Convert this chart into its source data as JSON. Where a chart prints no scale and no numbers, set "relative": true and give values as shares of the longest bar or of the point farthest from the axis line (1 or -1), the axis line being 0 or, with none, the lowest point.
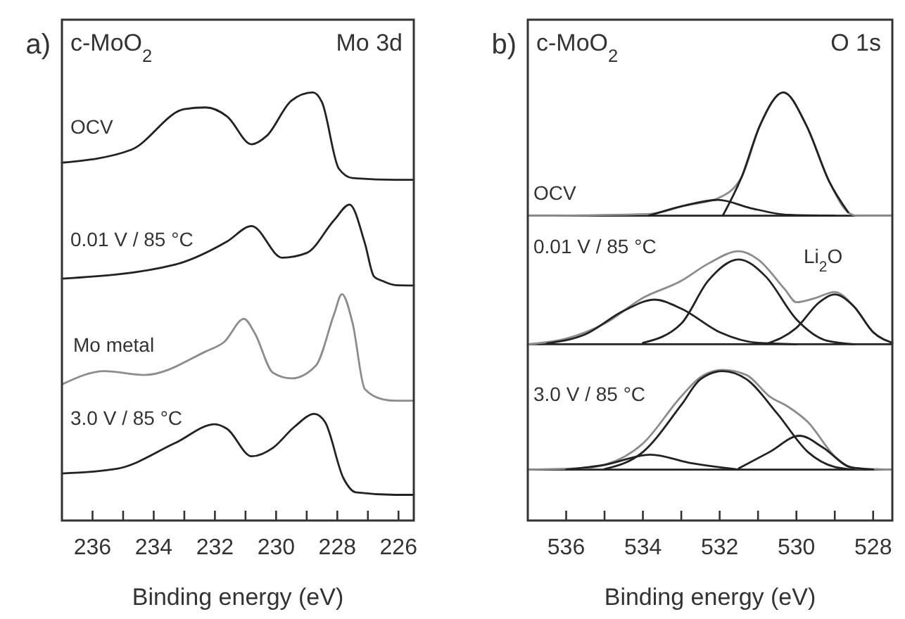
{
  "chart_data": [
    {
      "type": "line",
      "relative": true,
      "xlabel": "Binding energy (eV)",
      "xlim": [
        237,
        225.5
      ],
      "xticks": [
        236,
        {
          "value": 235,
          "label": null
        },
        234,
        {
          "value": 233,
          "label": null
        },
        232,
        {
          "value": 231,
          "label": null
        },
        230,
        {
          "value": 229,
          "label": null
        },
        228,
        {
          "value": 227,
          "label": null
        },
        226
      ],
      "grid": false,
      "marker": "none",
      "line_style": "solid",
      "annotations": [
        "a)",
        "c-MoO$_{2}$",
        "Mo 3d",
        "OCV",
        "0.01 V / 85 °C",
        "Mo metal",
        "3.0 V / 85 °C"
      ],
      "series": [
        {
          "color": "#222222",
          "x": [
            237,
            234.74,
            233.0,
            232.3,
            231.6,
            230.8,
            230.3,
            229.5,
            228.8,
            228.5,
            227.95,
            227.5,
            226.1,
            225.5
          ],
          "values": [
            0.836,
            0.866,
            0.961,
            0.965,
            0.944,
            0.879,
            0.899,
            0.981,
            1,
            0.977,
            0.822,
            0.8,
            0.796,
            0.796
          ]
        },
        {
          "color": "#222222",
          "x": [
            237,
            233.3,
            231.6,
            230.8,
            229.8,
            229.0,
            228.1,
            227.6,
            227.1,
            226.8,
            226.5,
            226.1,
            225.5
          ],
          "values": [
            0.565,
            0.598,
            0.652,
            0.688,
            0.614,
            0.625,
            0.702,
            0.738,
            0.648,
            0.57,
            0.559,
            0.55,
            0.549
          ]
        },
        {
          "color": "#8c8c8c",
          "x": [
            237,
            235.6,
            234.3,
            232.3,
            231.7,
            231.05,
            230.7,
            230.1,
            229.5,
            228.7,
            228.1,
            227.85,
            227.5,
            227.1,
            226.5,
            226.1,
            225.5
          ],
          "values": [
            0.318,
            0.349,
            0.34,
            0.395,
            0.417,
            0.471,
            0.438,
            0.345,
            0.332,
            0.362,
            0.483,
            0.529,
            0.461,
            0.307,
            0.283,
            0.28,
            0.28
          ]
        },
        {
          "color": "#222222",
          "x": [
            237,
            235.2,
            233.3,
            232.0,
            231.6,
            230.8,
            230.1,
            229.4,
            228.75,
            228.4,
            227.8,
            227.4,
            226.1,
            225.5
          ],
          "values": [
            0.11,
            0.121,
            0.181,
            0.225,
            0.214,
            0.15,
            0.17,
            0.219,
            0.249,
            0.23,
            0.099,
            0.066,
            0.06,
            0.06
          ]
        }
      ]
    },
    {
      "type": "line",
      "relative": true,
      "xlabel": "Binding energy (eV)",
      "xlim": [
        537,
        527.5
      ],
      "xticks": [
        536,
        {
          "value": 535,
          "label": null
        },
        534,
        {
          "value": 533,
          "label": null
        },
        532,
        {
          "value": 531,
          "label": null
        },
        530,
        {
          "value": 529,
          "label": null
        },
        528
      ],
      "grid": false,
      "marker": "none",
      "line_style": "solid",
      "ref_lines": [
        {
          "axis": "y",
          "value": 0.712,
          "color": "#222222"
        },
        {
          "axis": "y",
          "value": 0.412,
          "color": "#222222"
        },
        {
          "axis": "y",
          "value": 0.119,
          "color": "#222222"
        }
      ],
      "annotations": [
        "b)",
        "c-MoO$_{2}$",
        "O 1s",
        "OCV",
        "0.01 V / 85 °C",
        "Li$_{2}$O",
        "3.0 V / 85 °C"
      ],
      "series": [
        {
          "color": "#8c8c8c",
          "x": [
            537,
            533.85,
            532.9,
            532.04,
            531.43,
            530.95,
            530.34,
            529.74,
            529.14,
            528.65,
            528.41,
            527.5
          ],
          "values": [
            0.712,
            0.716,
            0.736,
            0.753,
            0.802,
            0.923,
            1,
            0.923,
            0.791,
            0.72,
            0.712,
            0.712
          ]
        },
        {
          "color": "#222222",
          "x": [
            531.92,
            531.43,
            530.95,
            530.34,
            529.74,
            529.14,
            528.65
          ],
          "values": [
            0.712,
            0.802,
            0.923,
            1,
            0.923,
            0.791,
            0.72
          ]
        },
        {
          "color": "#222222",
          "x": [
            533.85,
            532.9,
            532.04,
            531.2,
            530.2,
            529.0
          ],
          "values": [
            0.712,
            0.736,
            0.749,
            0.73,
            0.714,
            0.712
          ]
        },
        {
          "color": "#8c8c8c",
          "x": [
            537,
            536,
            535,
            534,
            533,
            532.3,
            531.5,
            531,
            530.3,
            530,
            529.5,
            529,
            528.5,
            528,
            527.5
          ],
          "values": [
            0.412,
            0.425,
            0.46,
            0.52,
            0.56,
            0.6,
            0.629,
            0.61,
            0.54,
            0.51,
            0.52,
            0.534,
            0.5,
            0.44,
            0.415
          ]
        },
        {
          "color": "#222222",
          "x": [
            536.5,
            535.5,
            534.5,
            533.7,
            533,
            532,
            531,
            530
          ],
          "values": [
            0.414,
            0.435,
            0.49,
            0.516,
            0.495,
            0.44,
            0.415,
            0.412
          ]
        },
        {
          "color": "#222222",
          "x": [
            534,
            533,
            532.3,
            531.5,
            530.8,
            530,
            529.2,
            528.5
          ],
          "values": [
            0.415,
            0.46,
            0.56,
            0.61,
            0.57,
            0.47,
            0.42,
            0.412
          ]
        },
        {
          "color": "#222222",
          "x": [
            530.8,
            530,
            529.4,
            529.0,
            528.5,
            528,
            527.5
          ],
          "values": [
            0.412,
            0.45,
            0.51,
            0.528,
            0.5,
            0.44,
            0.415
          ]
        },
        {
          "color": "#8c8c8c",
          "x": [
            537,
            535.5,
            535,
            534,
            533,
            532.5,
            531.92,
            531.3,
            530.7,
            530.2,
            529.7,
            529,
            528.5,
            527.5
          ],
          "values": [
            0.119,
            0.123,
            0.13,
            0.18,
            0.29,
            0.335,
            0.352,
            0.34,
            0.29,
            0.265,
            0.23,
            0.15,
            0.122,
            0.119
          ]
        },
        {
          "color": "#222222",
          "x": [
            535,
            534,
            533,
            532.5,
            531.92,
            531.3,
            530.5,
            529.7,
            529,
            528.5
          ],
          "values": [
            0.12,
            0.16,
            0.27,
            0.33,
            0.349,
            0.33,
            0.25,
            0.16,
            0.125,
            0.119
          ]
        },
        {
          "color": "#222222",
          "x": [
            536,
            535,
            533.8,
            532.8,
            531.5
          ],
          "values": [
            0.119,
            0.13,
            0.154,
            0.135,
            0.119
          ]
        },
        {
          "color": "#222222",
          "x": [
            531.5,
            530.7,
            529.92,
            529.3,
            528.6,
            528
          ],
          "values": [
            0.122,
            0.16,
            0.198,
            0.17,
            0.125,
            0.119
          ]
        }
      ]
    }
  ]
}
